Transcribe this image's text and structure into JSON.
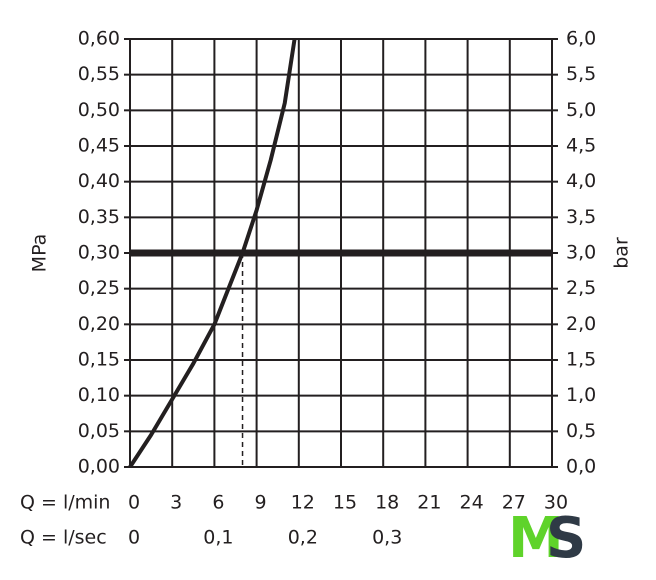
{
  "chart_data": {
    "type": "line",
    "y_label": "MPa",
    "y2_label": "bar",
    "x_label": "Q = l/min",
    "x2_label": "Q = l/sec",
    "xlim": [
      0,
      30
    ],
    "xticks": [
      0,
      3,
      6,
      9,
      12,
      15,
      18,
      21,
      24,
      27,
      30
    ],
    "x2lim": [
      0,
      0.5
    ],
    "x2ticks": [
      0,
      {
        "value": 0.1,
        "label": "0,1"
      },
      {
        "value": 0.2,
        "label": "0,2"
      },
      {
        "value": 0.3,
        "label": "0,3"
      }
    ],
    "ylim": [
      0,
      0.6
    ],
    "yticks": [
      {
        "value": 0,
        "label": "0,00"
      },
      {
        "value": 0.05,
        "label": "0,05"
      },
      {
        "value": 0.1,
        "label": "0,10"
      },
      {
        "value": 0.15,
        "label": "0,15"
      },
      {
        "value": 0.2,
        "label": "0,20"
      },
      {
        "value": 0.25,
        "label": "0,25"
      },
      {
        "value": 0.3,
        "label": "0,30"
      },
      {
        "value": 0.35,
        "label": "0,35"
      },
      {
        "value": 0.4,
        "label": "0,40"
      },
      {
        "value": 0.45,
        "label": "0,45"
      },
      {
        "value": 0.5,
        "label": "0,50"
      },
      {
        "value": 0.55,
        "label": "0,55"
      },
      {
        "value": 0.6,
        "label": "0,60"
      }
    ],
    "y2lim": [
      0,
      6
    ],
    "y2ticks": [
      {
        "value": 0,
        "label": "0,0"
      },
      {
        "value": 0.5,
        "label": "0,5"
      },
      {
        "value": 1,
        "label": "1,0"
      },
      {
        "value": 1.5,
        "label": "1,5"
      },
      {
        "value": 2,
        "label": "2,0"
      },
      {
        "value": 2.5,
        "label": "2,5"
      },
      {
        "value": 3,
        "label": "3,0"
      },
      {
        "value": 3.5,
        "label": "3,5"
      },
      {
        "value": 4,
        "label": "4,0"
      },
      {
        "value": 4.5,
        "label": "4,5"
      },
      {
        "value": 5,
        "label": "5,0"
      },
      {
        "value": 5.5,
        "label": "5,5"
      },
      {
        "value": 6,
        "label": "6,0"
      }
    ],
    "grid": true,
    "series": [
      {
        "color": "#231f20",
        "x": [
          0,
          1.5,
          3,
          4.5,
          6,
          7,
          8,
          9,
          10,
          11,
          11.7
        ],
        "values": [
          0,
          0.045,
          0.095,
          0.145,
          0.2,
          0.25,
          0.3,
          0.36,
          0.43,
          0.51,
          0.6
        ]
      }
    ],
    "reference_y": 0.3,
    "marker_x": 8
  },
  "logo": {
    "m": "M",
    "s": "S"
  }
}
